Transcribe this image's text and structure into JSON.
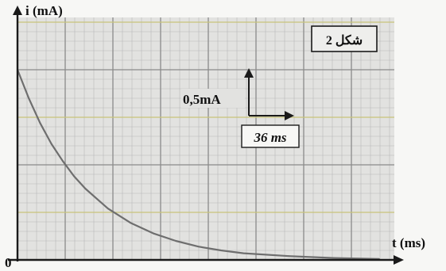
{
  "chart_data": {
    "type": "line",
    "title": "",
    "ylabel": "i (mA)",
    "xlabel": "t (ms)",
    "origin_label": "0",
    "figure_label": "شكل 2",
    "scale": {
      "y_label": "0,5mA",
      "x_label": "36 ms"
    },
    "grid": true,
    "ylim": [
      0,
      2.0
    ],
    "xlim": [
      0,
      300
    ],
    "series": [
      {
        "values": [
          {
            "x": 0,
            "y": 2.0
          },
          {
            "x": 9,
            "y": 1.7
          },
          {
            "x": 18,
            "y": 1.44
          },
          {
            "x": 27,
            "y": 1.22
          },
          {
            "x": 36,
            "y": 1.04
          },
          {
            "x": 45,
            "y": 0.88
          },
          {
            "x": 54,
            "y": 0.75
          },
          {
            "x": 72,
            "y": 0.54
          },
          {
            "x": 90,
            "y": 0.39
          },
          {
            "x": 108,
            "y": 0.28
          },
          {
            "x": 126,
            "y": 0.2
          },
          {
            "x": 144,
            "y": 0.14
          },
          {
            "x": 162,
            "y": 0.1
          },
          {
            "x": 180,
            "y": 0.07
          },
          {
            "x": 216,
            "y": 0.04
          },
          {
            "x": 252,
            "y": 0.02
          },
          {
            "x": 288,
            "y": 0.01
          }
        ]
      }
    ],
    "colors": {
      "curve": "#6e6e6e",
      "axes": "#1a1a1a",
      "minor_grid": "#b9b9b9",
      "major_grid": "#8a8a8a",
      "yellow_grid": "#c8c47a",
      "panel": "#e2e2e0"
    }
  }
}
